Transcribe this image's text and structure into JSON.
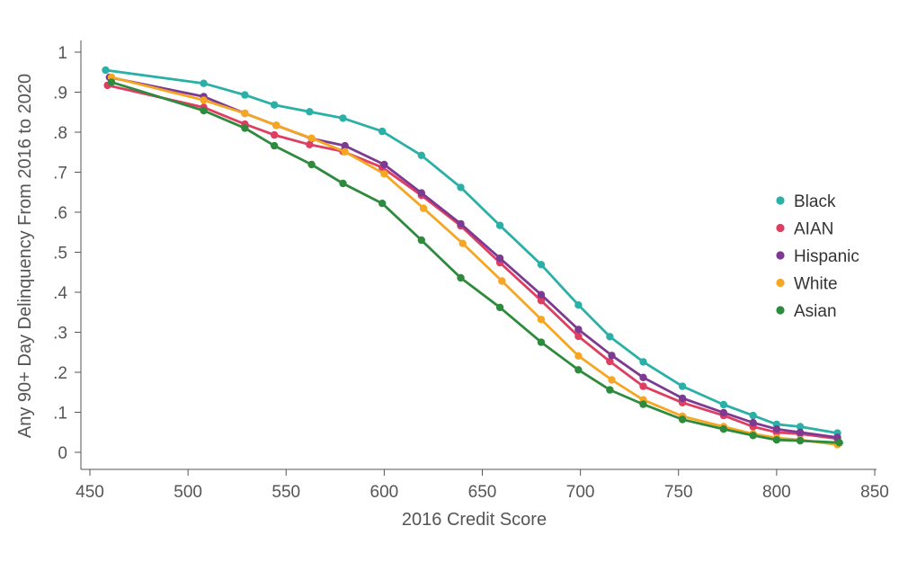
{
  "chart_data": {
    "type": "line",
    "xlabel": "2016 Credit Score",
    "ylabel": "Any 90+ Day Delinquency From 2016 to 2020",
    "xlim": [
      450,
      850
    ],
    "ylim": [
      0,
      1
    ],
    "x_ticks": [
      450,
      500,
      550,
      600,
      650,
      700,
      750,
      800,
      850
    ],
    "y_ticks": [
      0,
      0.1,
      0.2,
      0.3,
      0.4,
      0.5,
      0.6,
      0.7,
      0.8,
      0.9,
      1
    ],
    "x_tick_labels": [
      "450",
      "500",
      "550",
      "600",
      "650",
      "700",
      "750",
      "800",
      "850"
    ],
    "y_tick_labels": [
      "0",
      ".1",
      ".2",
      ".3",
      ".4",
      ".5",
      ".6",
      ".7",
      ".8",
      ".9",
      "1"
    ],
    "grid": false,
    "legend_position": "right",
    "series": [
      {
        "name": "Black",
        "color": "#2ab0a6",
        "x": [
          458,
          508,
          529,
          544,
          562,
          579,
          599,
          619,
          639,
          659,
          680,
          699,
          715,
          732,
          752,
          773,
          788,
          800,
          812,
          831
        ],
        "y": [
          0.955,
          0.922,
          0.893,
          0.868,
          0.851,
          0.835,
          0.802,
          0.742,
          0.662,
          0.567,
          0.469,
          0.368,
          0.289,
          0.226,
          0.165,
          0.119,
          0.092,
          0.07,
          0.064,
          0.048
        ]
      },
      {
        "name": "AIAN",
        "color": "#de3e62",
        "x": [
          459,
          508,
          529,
          544,
          562,
          579,
          599,
          619,
          639,
          659,
          680,
          699,
          715,
          732,
          752,
          773,
          788,
          800,
          812,
          831
        ],
        "y": [
          0.917,
          0.862,
          0.82,
          0.793,
          0.769,
          0.752,
          0.712,
          0.642,
          0.566,
          0.474,
          0.379,
          0.29,
          0.227,
          0.165,
          0.124,
          0.092,
          0.064,
          0.05,
          0.046,
          0.034
        ]
      },
      {
        "name": "Hispanic",
        "color": "#7d3a91",
        "x": [
          460,
          508,
          529,
          545,
          563,
          580,
          600,
          619,
          639,
          659,
          680,
          699,
          716,
          732,
          752,
          773,
          788,
          800,
          812,
          831
        ],
        "y": [
          0.937,
          0.889,
          0.847,
          0.817,
          0.784,
          0.766,
          0.719,
          0.648,
          0.571,
          0.485,
          0.394,
          0.307,
          0.242,
          0.187,
          0.135,
          0.099,
          0.074,
          0.058,
          0.05,
          0.037
        ]
      },
      {
        "name": "White",
        "color": "#f5a623",
        "x": [
          461,
          508,
          529,
          545,
          563,
          580,
          600,
          620,
          640,
          660,
          680,
          699,
          716,
          732,
          752,
          773,
          788,
          800,
          812,
          831
        ],
        "y": [
          0.937,
          0.88,
          0.847,
          0.817,
          0.785,
          0.751,
          0.696,
          0.61,
          0.522,
          0.428,
          0.332,
          0.241,
          0.181,
          0.131,
          0.09,
          0.064,
          0.046,
          0.036,
          0.031,
          0.019
        ]
      },
      {
        "name": "Asian",
        "color": "#2e8b3e",
        "x": [
          461,
          508,
          529,
          544,
          563,
          579,
          599,
          619,
          639,
          659,
          680,
          699,
          715,
          732,
          752,
          773,
          788,
          800,
          812,
          832
        ],
        "y": [
          0.925,
          0.854,
          0.81,
          0.766,
          0.719,
          0.672,
          0.622,
          0.53,
          0.436,
          0.362,
          0.275,
          0.206,
          0.156,
          0.12,
          0.082,
          0.058,
          0.042,
          0.031,
          0.029,
          0.024
        ]
      }
    ]
  }
}
